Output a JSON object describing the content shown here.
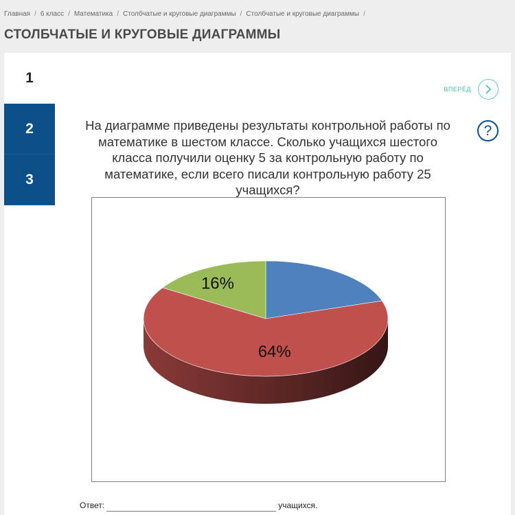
{
  "breadcrumb": [
    "Главная",
    "6 класс",
    "Математика",
    "Столбчатые и круговые диаграммы",
    "Столбчатые и круговые диаграммы"
  ],
  "breadcrumb_separator": "/",
  "page_title": "СТОЛБЧАТЫЕ И КРУГОВЫЕ ДИАГРАММЫ",
  "steps": [
    "1",
    "2",
    "3"
  ],
  "active_step": "1",
  "next_label": "ВПЕРЁД",
  "help_label": "?",
  "question": "На диаграмме приведены результаты контрольной работы по математике в шестом классе. Сколько учащихся шестого класса получили оценку 5 за контрольную работу по математике, если всего писали контрольную работу 25 учащихся?",
  "answer": {
    "label": "Ответ:",
    "value": "",
    "suffix": "учащихся."
  },
  "colors": {
    "step_blue": "#0b4f89",
    "accent_teal": "#3cc0b3",
    "pie_blue": "#4f81bd",
    "pie_red": "#c0504d",
    "pie_green": "#9bbb59"
  },
  "chart_data": {
    "type": "pie",
    "style": "3d",
    "slices": [
      {
        "label": "",
        "value": 20,
        "color": "#4f81bd"
      },
      {
        "label": "64%",
        "value": 64,
        "color": "#c0504d"
      },
      {
        "label": "16%",
        "value": 16,
        "color": "#9bbb59"
      }
    ]
  }
}
